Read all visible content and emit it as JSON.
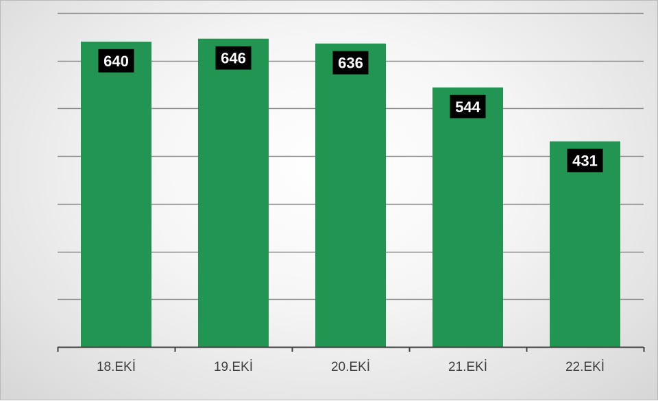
{
  "chart_data": {
    "type": "bar",
    "title": "",
    "xlabel": "",
    "ylabel": "",
    "categories": [
      "18.EKİ",
      "19.EKİ",
      "20.EKİ",
      "21.EKİ",
      "22.EKİ"
    ],
    "values": [
      640,
      646,
      636,
      544,
      431
    ],
    "data_labels": [
      "640",
      "646",
      "636",
      "544",
      "431"
    ],
    "ylim": [
      0,
      700
    ],
    "gridlines": true,
    "y_axis_tick_labels_visible": false,
    "legend": "none",
    "colors": {
      "bar": "#239553",
      "data_label_background": "#000000",
      "data_label_text": "#ffffff",
      "gridline": "#8c8c8c",
      "axis": "#404040"
    }
  }
}
